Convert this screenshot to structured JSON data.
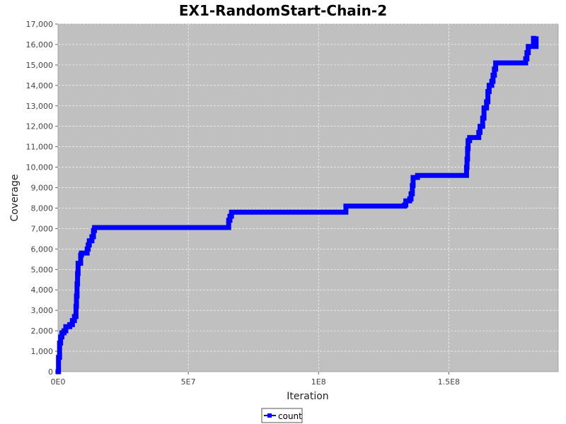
{
  "chart_data": {
    "type": "line",
    "title": "EX1-RandomStart-Chain-2",
    "xlabel": "Iteration",
    "ylabel": "Coverage",
    "xlim": [
      0,
      192000000
    ],
    "ylim": [
      0,
      17000
    ],
    "x_ticks": [
      {
        "value": 0,
        "label": "0E0"
      },
      {
        "value": 50000000,
        "label": "5E7"
      },
      {
        "value": 100000000,
        "label": "1E8"
      },
      {
        "value": 150000000,
        "label": "1.5E8"
      }
    ],
    "y_ticks": [
      {
        "value": 0,
        "label": "0"
      },
      {
        "value": 1000,
        "label": "1,000"
      },
      {
        "value": 2000,
        "label": "2,000"
      },
      {
        "value": 3000,
        "label": "3,000"
      },
      {
        "value": 4000,
        "label": "4,000"
      },
      {
        "value": 5000,
        "label": "5,000"
      },
      {
        "value": 6000,
        "label": "6,000"
      },
      {
        "value": 7000,
        "label": "7,000"
      },
      {
        "value": 8000,
        "label": "8,000"
      },
      {
        "value": 9000,
        "label": "9,000"
      },
      {
        "value": 10000,
        "label": "10,000"
      },
      {
        "value": 11000,
        "label": "11,000"
      },
      {
        "value": 12000,
        "label": "12,000"
      },
      {
        "value": 13000,
        "label": "13,000"
      },
      {
        "value": 14000,
        "label": "14,000"
      },
      {
        "value": 15000,
        "label": "15,000"
      },
      {
        "value": 16000,
        "label": "16,000"
      },
      {
        "value": 17000,
        "label": "17,000"
      }
    ],
    "grid": true,
    "legend_position": "bottom",
    "colors": {
      "background": "#c0c0c0",
      "grid": "#ffffff",
      "series": "#0000ff"
    },
    "series": [
      {
        "name": "count",
        "step": true,
        "points": [
          [
            0,
            0
          ],
          [
            200000,
            700
          ],
          [
            600000,
            1400
          ],
          [
            1000000,
            1700
          ],
          [
            1500000,
            1900
          ],
          [
            2300000,
            2000
          ],
          [
            3000000,
            2200
          ],
          [
            4500000,
            2300
          ],
          [
            5500000,
            2500
          ],
          [
            6300000,
            2700
          ],
          [
            6900000,
            3200
          ],
          [
            7100000,
            3700
          ],
          [
            7300000,
            4300
          ],
          [
            7500000,
            4800
          ],
          [
            7700000,
            5300
          ],
          [
            8700000,
            5700
          ],
          [
            9000000,
            5800
          ],
          [
            11000000,
            5800
          ],
          [
            11200000,
            6000
          ],
          [
            11600000,
            6200
          ],
          [
            12000000,
            6400
          ],
          [
            13000000,
            6600
          ],
          [
            13600000,
            6900
          ],
          [
            14000000,
            7050
          ],
          [
            65000000,
            7050
          ],
          [
            65500000,
            7400
          ],
          [
            66000000,
            7600
          ],
          [
            66600000,
            7800
          ],
          [
            110000000,
            7800
          ],
          [
            110500000,
            8100
          ],
          [
            133000000,
            8150
          ],
          [
            133500000,
            8350
          ],
          [
            135000000,
            8450
          ],
          [
            135500000,
            8700
          ],
          [
            136000000,
            9100
          ],
          [
            136300000,
            9500
          ],
          [
            138000000,
            9600
          ],
          [
            156500000,
            9600
          ],
          [
            156800000,
            10000
          ],
          [
            157000000,
            10400
          ],
          [
            157200000,
            10900
          ],
          [
            157400000,
            11300
          ],
          [
            158000000,
            11450
          ],
          [
            161500000,
            11700
          ],
          [
            162000000,
            12000
          ],
          [
            163000000,
            12400
          ],
          [
            163500000,
            12900
          ],
          [
            164500000,
            13200
          ],
          [
            165000000,
            13700
          ],
          [
            165500000,
            14000
          ],
          [
            166500000,
            14200
          ],
          [
            167000000,
            14500
          ],
          [
            167500000,
            14800
          ],
          [
            168000000,
            15100
          ],
          [
            179000000,
            15100
          ],
          [
            179500000,
            15300
          ],
          [
            180000000,
            15600
          ],
          [
            180500000,
            15900
          ],
          [
            182500000,
            16300
          ],
          [
            183500000,
            16400
          ],
          [
            183500000,
            15900
          ]
        ]
      }
    ]
  }
}
